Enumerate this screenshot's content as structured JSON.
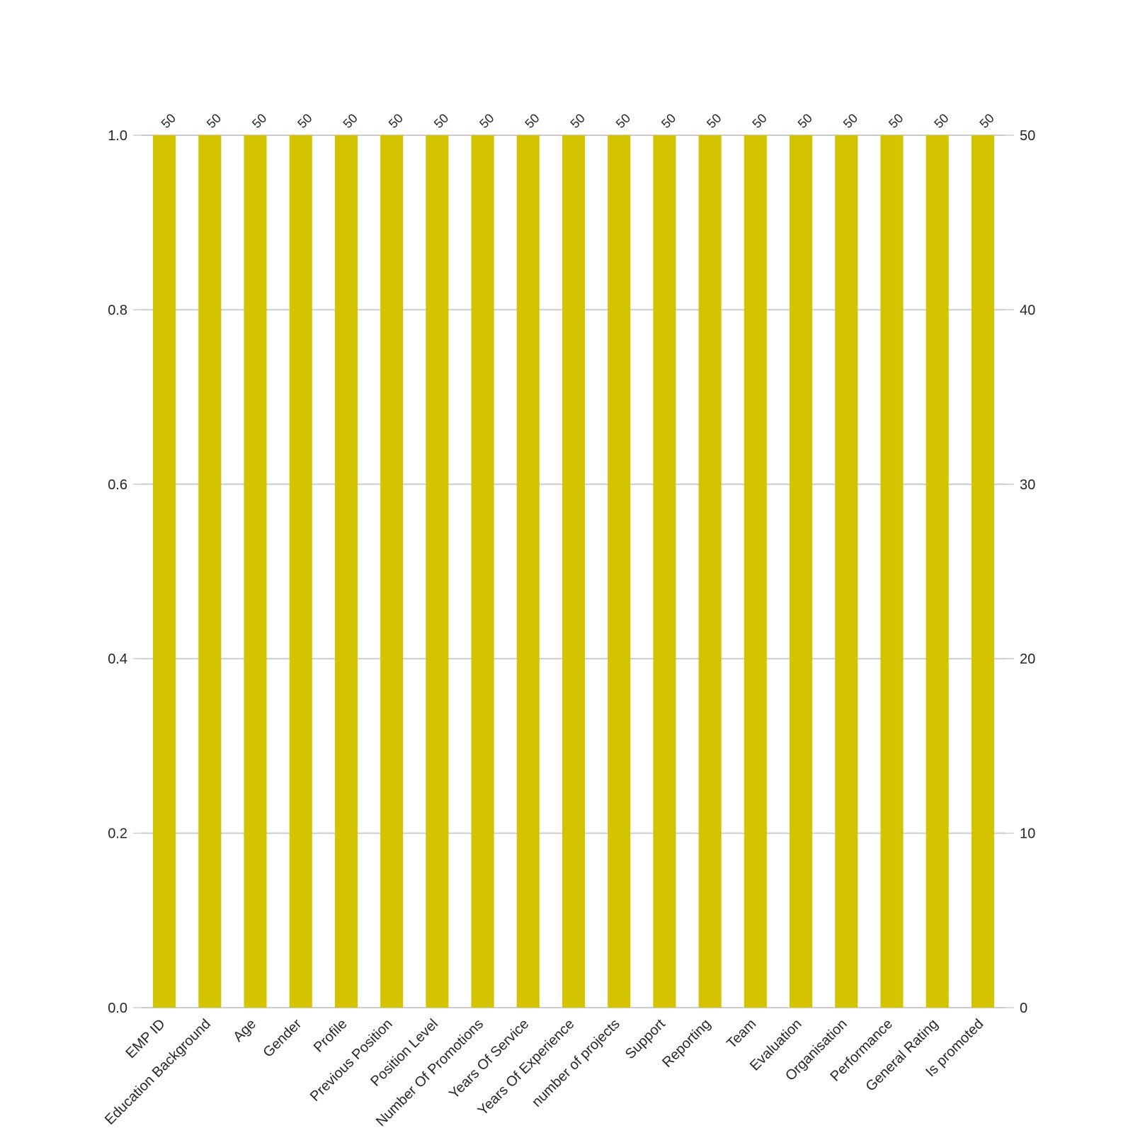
{
  "chart_data": {
    "type": "bar",
    "title": "",
    "xlabel": "",
    "ylabel": "",
    "categories": [
      "EMP ID",
      "Education Background",
      "Age",
      "Gender",
      "Profile",
      "Previous Position",
      "Position Level",
      "Number Of Promotions",
      "Years Of Service",
      "Years Of Experience",
      "number of projects",
      "Support",
      "Reporting",
      "Team",
      "Evaluation",
      "Organisation",
      "Performance",
      "General Rating",
      "Is promoted"
    ],
    "values": [
      1.0,
      1.0,
      1.0,
      1.0,
      1.0,
      1.0,
      1.0,
      1.0,
      1.0,
      1.0,
      1.0,
      1.0,
      1.0,
      1.0,
      1.0,
      1.0,
      1.0,
      1.0,
      1.0
    ],
    "counts": [
      "50",
      "50",
      "50",
      "50",
      "50",
      "50",
      "50",
      "50",
      "50",
      "50",
      "50",
      "50",
      "50",
      "50",
      "50",
      "50",
      "50",
      "50",
      "50"
    ],
    "ylim": [
      0,
      1.0
    ],
    "yticks": [
      "0.0",
      "0.2",
      "0.4",
      "0.6",
      "0.8",
      "1.0"
    ],
    "ylim_right": [
      0,
      50
    ],
    "yticks_right": [
      "0",
      "10",
      "20",
      "30",
      "40",
      "50"
    ],
    "grid": true,
    "bar_color": "#d4c400",
    "grid_color": "#cccccc"
  }
}
